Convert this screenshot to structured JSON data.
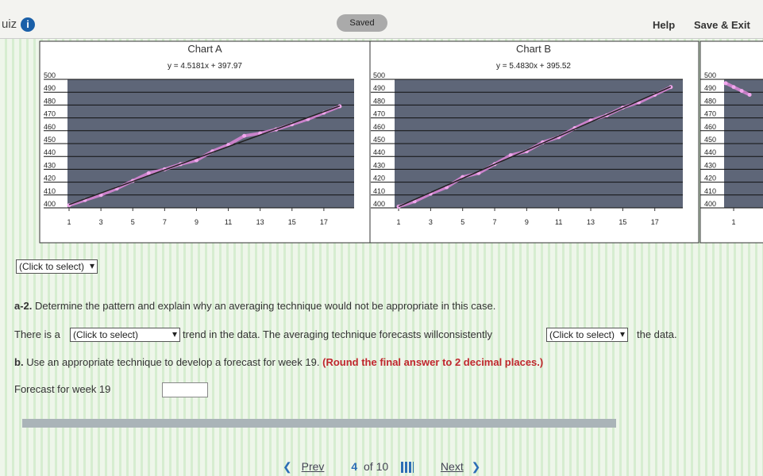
{
  "header": {
    "title": "uiz",
    "status": "Saved",
    "help": "Help",
    "save_exit": "Save & Exit"
  },
  "charts": [
    {
      "title": "Chart A",
      "equation": "y = 4.5181x + 397.97",
      "xlim": [
        0.9,
        18.9
      ],
      "ylim": [
        400,
        500
      ],
      "yticks": [
        400,
        410,
        420,
        430,
        440,
        450,
        460,
        470,
        480,
        490,
        500
      ],
      "xticks": [
        1,
        3,
        5,
        7,
        9,
        11,
        13,
        15,
        17
      ],
      "x": [
        1,
        2,
        3,
        4,
        5,
        6,
        7,
        8,
        9,
        10,
        11,
        12,
        13,
        14,
        15,
        16,
        17,
        18
      ],
      "values": [
        402,
        406,
        410,
        415,
        421,
        427,
        430,
        434,
        437,
        444,
        449,
        456,
        458,
        461,
        465,
        469,
        474,
        479
      ],
      "trend": {
        "slope": 4.5181,
        "intercept": 397.97
      }
    },
    {
      "title": "Chart B",
      "equation": "y = 5.4830x + 395.52",
      "xlim": [
        0.75,
        18.75
      ],
      "ylim": [
        400,
        500
      ],
      "yticks": [
        400,
        410,
        420,
        430,
        440,
        450,
        460,
        470,
        480,
        490,
        500
      ],
      "xticks": [
        1,
        3,
        5,
        7,
        9,
        11,
        13,
        15,
        17
      ],
      "x": [
        1,
        2,
        3,
        4,
        5,
        6,
        7,
        8,
        9,
        10,
        11,
        12,
        13,
        14,
        15,
        16,
        17,
        18
      ],
      "values": [
        401,
        405,
        411,
        416,
        424,
        427,
        434,
        441,
        444,
        451,
        455,
        462,
        468,
        472,
        478,
        482,
        488,
        494
      ],
      "trend": {
        "slope": 5.483,
        "intercept": 395.52
      }
    },
    {
      "xlim": [
        0.4,
        18.4
      ],
      "ylim": [
        400,
        500
      ],
      "yticks": [
        400,
        410,
        420,
        430,
        440,
        450,
        460,
        470,
        480,
        490,
        500
      ],
      "xticks": [
        1
      ],
      "x": [
        0.5,
        1,
        1.5,
        2
      ],
      "values": [
        497,
        494,
        491,
        488
      ]
    }
  ],
  "form": {
    "chart_select": "(Click to select)",
    "question_a2": {
      "label": "a-2.",
      "text": "Determine the pattern and explain why an averaging technique would not be appropriate in this case."
    },
    "sentence": {
      "part1": "There is a",
      "select1": "(Click to select)",
      "part2": "trend in the data. The averaging technique forecasts willconsistently",
      "select2": "(Click to select)",
      "part3": "the data."
    },
    "question_b": {
      "label": "b.",
      "text": "Use an appropriate technique to develop a forecast for week 19.",
      "note": "(Round the final answer to 2 decimal places.)"
    },
    "forecast_label": "Forecast for week 19"
  },
  "nav": {
    "prev": "Prev",
    "page": 4,
    "total": "of 10",
    "next": "Next"
  }
}
